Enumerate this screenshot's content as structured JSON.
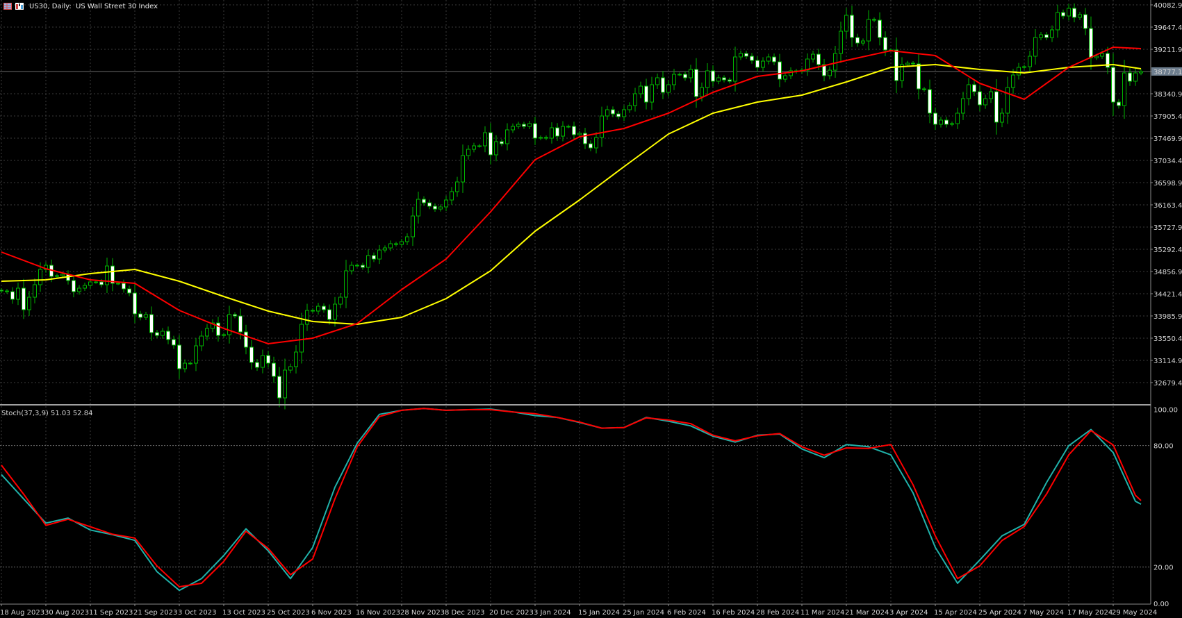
{
  "header": {
    "title": "US30, Daily:  US Wall Street 30 Index",
    "icons": [
      "table-icon",
      "chart-icon"
    ]
  },
  "colors": {
    "background": "#000000",
    "grid": "#3c3c3c",
    "axis": "#8a8a8a",
    "candle_outline": "#00b400",
    "bull_body": "#000000",
    "bear_body": "#ffffff",
    "ma_fast": "#ff0000",
    "ma_slow": "#ffff00",
    "stoch_main": "#20b2aa",
    "stoch_signal": "#ff0000",
    "price_marker_bg": "#6f7f8f"
  },
  "chart_data": [
    {
      "type": "candlestick",
      "title": "US30, Daily:  US Wall Street 30 Index",
      "ylim": [
        32240,
        40180
      ],
      "grid": true,
      "current_price": "38777.1",
      "price_axis_ticks": [
        "40082.9",
        "39647.4",
        "39211.9",
        "38777.1",
        "38340.9",
        "37905.4",
        "37469.9",
        "37034.4",
        "36598.9",
        "36163.4",
        "35727.9",
        "35292.4",
        "34856.9",
        "34421.4",
        "33985.9",
        "33550.4",
        "33114.9",
        "32679.4"
      ],
      "date_labels": [
        "18 Aug 2023",
        "30 Aug 2023",
        "11 Sep 2023",
        "21 Sep 2023",
        "3 Oct 2023",
        "13 Oct 2023",
        "25 Oct 2023",
        "6 Nov 2023",
        "16 Nov 2023",
        "28 Nov 2023",
        "8 Dec 2023",
        "20 Dec 2023",
        "3 Jan 2024",
        "15 Jan 2024",
        "25 Jan 2024",
        "6 Feb 2024",
        "16 Feb 2024",
        "28 Feb 2024",
        "11 Mar 2024",
        "21 Mar 2024",
        "3 Apr 2024",
        "15 Apr 2024",
        "25 Apr 2024",
        "7 May 2024",
        "17 May 2024",
        "29 May 2024"
      ],
      "close": [
        34475,
        34462,
        34312,
        34530,
        34108,
        34353,
        34598,
        34897,
        34979,
        34761,
        34775,
        34802,
        34680,
        34462,
        34530,
        34584,
        34652,
        34652,
        34598,
        34965,
        34625,
        34625,
        34516,
        34435,
        34026,
        33958,
        34013,
        33659,
        33604,
        33686,
        33523,
        33414,
        32951,
        33060,
        33060,
        33400,
        33591,
        33741,
        33849,
        33604,
        33618,
        34013,
        33985,
        33672,
        33373,
        33074,
        32978,
        33210,
        33060,
        32801,
        32380,
        32924,
        32992,
        33278,
        33822,
        34094,
        34081,
        34176,
        34108,
        33917,
        34217,
        34353,
        34870,
        34979,
        34979,
        34938,
        35170,
        35101,
        35278,
        35319,
        35401,
        35387,
        35442,
        35537,
        35945,
        36272,
        36204,
        36136,
        36081,
        36122,
        36258,
        36422,
        36612,
        37129,
        37252,
        37320,
        37320,
        37578,
        37143,
        37402,
        37361,
        37633,
        37701,
        37742,
        37701,
        37755,
        37470,
        37483,
        37470,
        37674,
        37510,
        37701,
        37701,
        37538,
        37565,
        37361,
        37279,
        37483,
        37905,
        38028,
        37946,
        37892,
        38028,
        38109,
        38341,
        38490,
        38177,
        38518,
        38654,
        38368,
        38518,
        38722,
        38722,
        38654,
        38817,
        38286,
        38463,
        38790,
        38586,
        38654,
        38613,
        38586,
        39062,
        39130,
        39076,
        38994,
        38858,
        38980,
        39062,
        38967,
        38626,
        38695,
        38790,
        38776,
        38803,
        39021,
        39116,
        38912,
        38695,
        38803,
        39130,
        39566,
        39879,
        39443,
        39334,
        39375,
        39797,
        39783,
        39443,
        39198,
        39198,
        38599,
        38912,
        38940,
        38926,
        38436,
        38422,
        37960,
        37742,
        37824,
        37742,
        37755,
        37960,
        38245,
        38518,
        38381,
        38123,
        38245,
        38381,
        37783,
        37960,
        38463,
        38708,
        38858,
        38871,
        39076,
        39443,
        39498,
        39443,
        39593,
        39933,
        39865,
        40015,
        39838,
        39892,
        39620,
        39048,
        39076,
        39130,
        38858,
        38177,
        38109,
        38749,
        38586,
        38749,
        38777.1
      ],
      "ma_sample_bars": [
        0,
        8,
        16,
        24,
        32,
        40,
        48,
        56,
        64,
        72,
        80,
        88,
        96,
        104,
        112,
        120,
        128,
        136,
        144,
        152,
        160,
        168,
        176,
        184,
        192,
        200,
        205
      ],
      "ma_fast": [
        35238,
        34911,
        34694,
        34625,
        34094,
        33741,
        33441,
        33550,
        33836,
        34503,
        35101,
        36027,
        37048,
        37497,
        37660,
        37960,
        38368,
        38681,
        38790,
        38994,
        39184,
        39089,
        38545,
        38232,
        38858,
        39253,
        39225
      ],
      "ma_slow": [
        34666,
        34693,
        34816,
        34897,
        34666,
        34367,
        34081,
        33877,
        33822,
        33958,
        34326,
        34870,
        35646,
        36258,
        36912,
        37551,
        37960,
        38177,
        38313,
        38572,
        38858,
        38912,
        38817,
        38749,
        38858,
        38912,
        38831
      ]
    },
    {
      "type": "line",
      "label": "Stoch(37,3,9) 51.03 52.84",
      "ylim": [
        0,
        100
      ],
      "levels": [
        80,
        20
      ],
      "axis_ticks": [
        "100.00",
        "80.00",
        "20.00",
        "0.00"
      ],
      "sample_bars": [
        0,
        4,
        8,
        12,
        16,
        20,
        24,
        28,
        32,
        36,
        40,
        44,
        48,
        52,
        56,
        60,
        64,
        68,
        72,
        76,
        80,
        84,
        88,
        92,
        96,
        100,
        104,
        108,
        112,
        116,
        120,
        124,
        128,
        132,
        136,
        140,
        144,
        148,
        152,
        156,
        160,
        164,
        168,
        172,
        176,
        180,
        184,
        188,
        192,
        196,
        200,
        204,
        205
      ],
      "main": [
        65.7,
        53.7,
        41.7,
        44.2,
        38.3,
        36.0,
        33.2,
        17.7,
        8.5,
        14.3,
        25.7,
        38.9,
        28.0,
        14.3,
        29.7,
        59.4,
        81.1,
        95.4,
        97.4,
        98.3,
        97.4,
        97.7,
        98.0,
        96.6,
        94.8,
        93.9,
        91.4,
        88.6,
        88.9,
        93.9,
        92.0,
        89.7,
        84.6,
        81.7,
        85.1,
        85.7,
        78.3,
        74.0,
        80.5,
        79.4,
        75.4,
        56.6,
        29.7,
        12.0,
        23.5,
        35.4,
        41.1,
        61.7,
        79.9,
        87.9,
        76.5,
        52.5,
        51.03
      ],
      "signal": [
        70.3,
        56.0,
        40.6,
        43.6,
        39.9,
        36.2,
        34.3,
        20.5,
        10.3,
        12.0,
        22.8,
        37.7,
        29.2,
        16.2,
        24.0,
        53.7,
        79.4,
        94.3,
        97.4,
        98.3,
        97.4,
        97.7,
        97.7,
        96.6,
        95.7,
        93.9,
        91.6,
        88.6,
        88.9,
        93.7,
        92.6,
        90.8,
        85.1,
        82.3,
        84.8,
        85.9,
        79.4,
        75.2,
        78.8,
        78.6,
        80.5,
        60.6,
        35.4,
        14.3,
        20.6,
        33.1,
        40.0,
        56.0,
        75.4,
        87.4,
        80.3,
        55.4,
        52.84
      ]
    }
  ]
}
